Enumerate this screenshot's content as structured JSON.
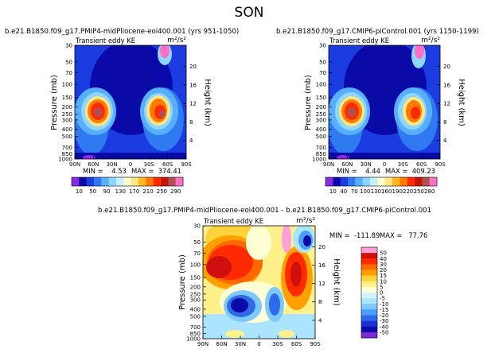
{
  "season": "SON",
  "colors": {
    "scale_top": [
      "#8a2be2",
      "#0a0aa8",
      "#1a3ce0",
      "#2f7af0",
      "#56b0ff",
      "#8fd6ff",
      "#c4f0ff",
      "#ffffcc",
      "#ffe680",
      "#ffb81f",
      "#ff7a00",
      "#ff2a00",
      "#c81400",
      "#b05050",
      "#ff6ec7"
    ],
    "scale_diff": [
      "#7a2ad6",
      "#0a0aa8",
      "#1a2fd0",
      "#2f6ae8",
      "#4d9cff",
      "#7cc8ff",
      "#aae4ff",
      "#d6f4ff",
      "#ffffd6",
      "#fff08a",
      "#ffd13b",
      "#ffa000",
      "#ff6a00",
      "#ff2a00",
      "#d01010",
      "#ff9fd8"
    ]
  },
  "chart_data": [
    {
      "type": "heatmap",
      "title": "b.e21.B1850.f09_g17.PMIP4-midPliocene-eoi400.001 (yrs 951-1050)",
      "subtitle": "Transient eddy KE",
      "units": "m²/s²",
      "xlabel": "",
      "ylabel": "Pressure (mb)",
      "ylabel_right": "Height (km)",
      "x_ticks": [
        "90N",
        "60N",
        "30N",
        "0",
        "30S",
        "60S",
        "90S"
      ],
      "y_ticks": [
        "30",
        "50",
        "70",
        "100",
        "150",
        "200",
        "250",
        "300",
        "400",
        "500",
        "700",
        "850",
        "1000"
      ],
      "height_ticks": [
        "20",
        "16",
        "12",
        "8",
        "4"
      ],
      "min_text": "MIN =    4.53",
      "max_text": "MAX =  374.41",
      "colorbar_labels": [
        "10",
        "50",
        "90",
        "130",
        "170",
        "210",
        "250",
        "290"
      ],
      "value_range": [
        4.53,
        374.41
      ]
    },
    {
      "type": "heatmap",
      "title": "b.e21.B1850.f09_g17.CMIP6-piControl.001 (yrs 1150-1199)",
      "subtitle": "Transient eddy KE",
      "units": "m²/s²",
      "xlabel": "",
      "ylabel": "Pressure (mb)",
      "ylabel_right": "Height (km)",
      "x_ticks": [
        "90N",
        "60N",
        "30N",
        "0",
        "30S",
        "60S",
        "90S"
      ],
      "y_ticks": [
        "30",
        "50",
        "70",
        "100",
        "150",
        "200",
        "250",
        "300",
        "400",
        "500",
        "700",
        "850",
        "1000"
      ],
      "height_ticks": [
        "20",
        "16",
        "12",
        "8",
        "4"
      ],
      "min_text": "MIN =    4.44",
      "max_text": "MAX =  409.23",
      "colorbar_labels": [
        "10",
        "40",
        "70",
        "100",
        "130",
        "160",
        "190",
        "220",
        "250",
        "280"
      ],
      "value_range": [
        4.44,
        409.23
      ]
    },
    {
      "type": "heatmap",
      "title": "b.e21.B1850.f09_g17.PMIP4-midPliocene-eoi400.001 - b.e21.B1850.f09_g17.CMIP6-piControl.001",
      "subtitle": "Transient eddy KE",
      "units": "m²/s²",
      "xlabel": "",
      "ylabel": "Pressure (mb)",
      "ylabel_right": "Height (km)",
      "x_ticks": [
        "90N",
        "60N",
        "30N",
        "0",
        "30S",
        "60S",
        "90S"
      ],
      "y_ticks": [
        "30",
        "50",
        "70",
        "100",
        "150",
        "200",
        "250",
        "300",
        "400",
        "500",
        "700",
        "850",
        "1000"
      ],
      "height_ticks": [
        "20",
        "16",
        "12",
        "8",
        "4"
      ],
      "min_text": "MIN =  -111.89",
      "max_text": "MAX =   77.76",
      "colorbar_labels": [
        "50",
        "40",
        "30",
        "20",
        "15",
        "10",
        "5",
        "0",
        "-5",
        "-10",
        "-15",
        "-20",
        "-30",
        "-40",
        "-50"
      ],
      "value_range": [
        -111.89,
        77.76
      ]
    }
  ]
}
